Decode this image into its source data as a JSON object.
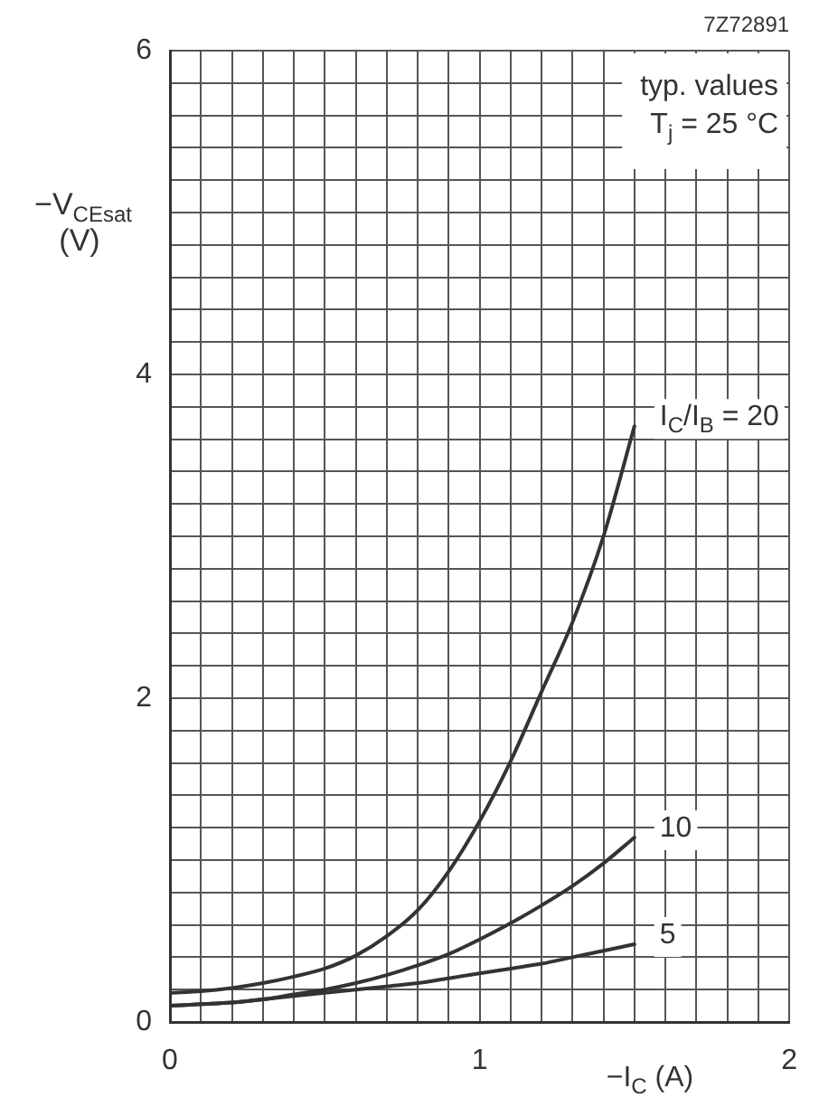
{
  "chart_data": {
    "type": "line",
    "xlabel": "−I$_{C}$ (A)",
    "ylabel": "−V$_{CEsat}$ (V)",
    "annotations": [
      "7Z72891",
      "typ. values",
      "T$_{j}$ = 25 °C"
    ],
    "x": [
      0,
      0.1,
      0.2,
      0.3,
      0.4,
      0.5,
      0.6,
      0.7,
      0.8,
      0.9,
      1.0,
      1.1,
      1.2,
      1.3,
      1.4,
      1.5
    ],
    "series": [
      {
        "name": "I$_{C}$/I$_{B}$ = 20",
        "color": "#333333",
        "values": [
          0.18,
          0.19,
          0.21,
          0.24,
          0.28,
          0.33,
          0.41,
          0.53,
          0.69,
          0.93,
          1.24,
          1.61,
          2.04,
          2.47,
          3.0,
          3.68
        ]
      },
      {
        "name": "10",
        "color": "#333333",
        "values": [
          0.1,
          0.11,
          0.12,
          0.14,
          0.17,
          0.2,
          0.24,
          0.29,
          0.35,
          0.42,
          0.51,
          0.61,
          0.72,
          0.84,
          0.98,
          1.14
        ]
      },
      {
        "name": "5",
        "color": "#333333",
        "values": [
          0.1,
          0.11,
          0.12,
          0.14,
          0.16,
          0.18,
          0.2,
          0.22,
          0.24,
          0.27,
          0.3,
          0.33,
          0.36,
          0.4,
          0.44,
          0.48
        ]
      }
    ],
    "xlim": [
      0,
      2
    ],
    "ylim": [
      0,
      6
    ],
    "xticks": [
      0,
      {
        "value": 0.1,
        "label": null
      },
      {
        "value": 0.2,
        "label": null
      },
      {
        "value": 0.3,
        "label": null
      },
      {
        "value": 0.4,
        "label": null
      },
      {
        "value": 0.5,
        "label": null
      },
      {
        "value": 0.6,
        "label": null
      },
      {
        "value": 0.7,
        "label": null
      },
      {
        "value": 0.8,
        "label": null
      },
      {
        "value": 0.9,
        "label": null
      },
      1,
      {
        "value": 1.1,
        "label": null
      },
      {
        "value": 1.2,
        "label": null
      },
      {
        "value": 1.3,
        "label": null
      },
      {
        "value": 1.4,
        "label": null
      },
      {
        "value": 1.5,
        "label": null
      },
      {
        "value": 1.6,
        "label": null
      },
      {
        "value": 1.7,
        "label": null
      },
      {
        "value": 1.8,
        "label": null
      },
      {
        "value": 1.9,
        "label": null
      },
      2
    ],
    "yticks": [
      0,
      {
        "value": 0.2,
        "label": null
      },
      {
        "value": 0.4,
        "label": null
      },
      {
        "value": 0.6,
        "label": null
      },
      {
        "value": 0.8,
        "label": null
      },
      {
        "value": 1,
        "label": null
      },
      {
        "value": 1.2,
        "label": null
      },
      {
        "value": 1.4,
        "label": null
      },
      {
        "value": 1.6,
        "label": null
      },
      {
        "value": 1.8,
        "label": null
      },
      2,
      {
        "value": 2.2,
        "label": null
      },
      {
        "value": 2.4,
        "label": null
      },
      {
        "value": 2.6,
        "label": null
      },
      {
        "value": 2.8,
        "label": null
      },
      {
        "value": 3,
        "label": null
      },
      {
        "value": 3.2,
        "label": null
      },
      {
        "value": 3.4,
        "label": null
      },
      {
        "value": 3.6,
        "label": null
      },
      {
        "value": 3.8,
        "label": null
      },
      4,
      {
        "value": 4.2,
        "label": null
      },
      {
        "value": 4.4,
        "label": null
      },
      {
        "value": 4.6,
        "label": null
      },
      {
        "value": 4.8,
        "label": null
      },
      {
        "value": 5,
        "label": null
      },
      {
        "value": 5.2,
        "label": null
      },
      {
        "value": 5.4,
        "label": null
      },
      {
        "value": 5.6,
        "label": null
      },
      {
        "value": 5.8,
        "label": null
      },
      6
    ],
    "grid": true
  }
}
